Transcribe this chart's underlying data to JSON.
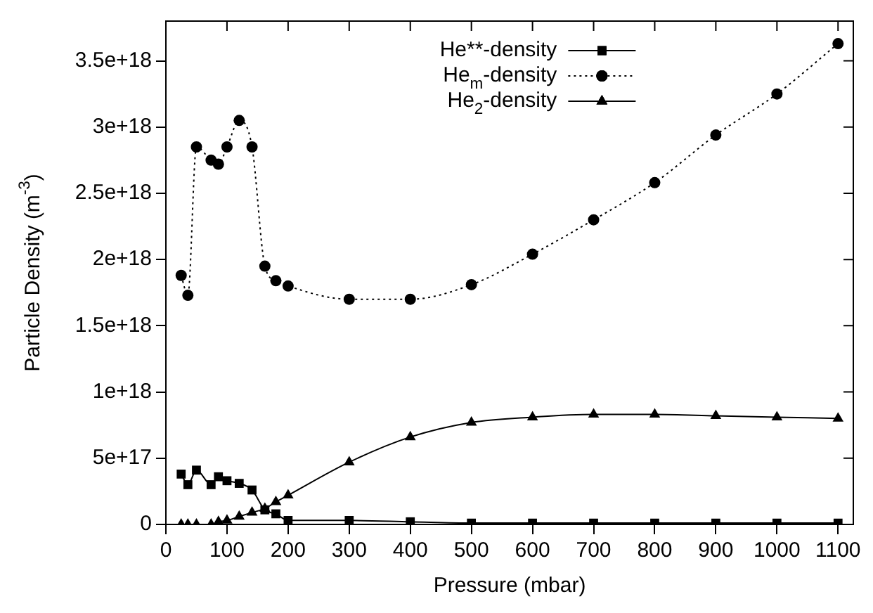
{
  "chart_data": {
    "type": "line",
    "xlabel": "Pressure (mbar)",
    "ylabel": "Particle Density (m$^{-3}$)",
    "x": [
      25,
      36,
      50,
      74,
      86,
      100,
      120,
      141,
      162,
      180,
      200,
      300,
      400,
      500,
      600,
      700,
      800,
      900,
      1000,
      1100
    ],
    "xlim": [
      0,
      1125
    ],
    "xticks": [
      0,
      100,
      200,
      300,
      400,
      500,
      600,
      700,
      800,
      900,
      1000,
      1100
    ],
    "ylim": [
      0,
      3.8e+18
    ],
    "yticks": [
      0,
      {
        "value": 5e+17,
        "label": "5e+17"
      },
      {
        "value": 1e+18,
        "label": "1e+18"
      },
      {
        "value": 1.5e+18,
        "label": "1.5e+18"
      },
      {
        "value": 2e+18,
        "label": "2e+18"
      },
      {
        "value": 2.5e+18,
        "label": "2.5e+18"
      },
      {
        "value": 3e+18,
        "label": "3e+18"
      },
      {
        "value": 3.5e+18,
        "label": "3.5e+18"
      }
    ],
    "grid": false,
    "legend": "top",
    "series": [
      {
        "name": "He**-density",
        "color": "#000000",
        "marker": "square",
        "line_style": "solid",
        "values": [
          3.8e+17,
          3e+17,
          4.1e+17,
          3e+17,
          3.6e+17,
          3.3e+17,
          3.1e+17,
          2.6e+17,
          1.1e+17,
          8e+16,
          3e+16,
          3e+16,
          2e+16,
          1e+16,
          1e+16,
          1e+16,
          1e+16,
          1e+16,
          1e+16,
          1e+16
        ]
      },
      {
        "name": "He$_{m}$-density",
        "color": "#000000",
        "marker": "circle",
        "line_style": "dotted",
        "values": [
          1.88e+18,
          1.73e+18,
          2.85e+18,
          2.75e+18,
          2.72e+18,
          2.85e+18,
          3.05e+18,
          2.85e+18,
          1.95e+18,
          1.84e+18,
          1.8e+18,
          1.7e+18,
          1.7e+18,
          1.81e+18,
          2.04e+18,
          2.3e+18,
          2.58e+18,
          2.94e+18,
          3.25e+18,
          3.63e+18
        ]
      },
      {
        "name": "He$_{2}$-density",
        "color": "#000000",
        "marker": "triangle",
        "line_style": "solid",
        "values": [
          0,
          0,
          0,
          0,
          2e+16,
          3e+16,
          6e+16,
          9e+16,
          1.2e+17,
          1.7e+17,
          2.2e+17,
          4.7e+17,
          6.6e+17,
          7.7e+17,
          8.1e+17,
          8.3e+17,
          8.3e+17,
          8.2e+17,
          8.1e+17,
          8e+17
        ]
      }
    ]
  }
}
